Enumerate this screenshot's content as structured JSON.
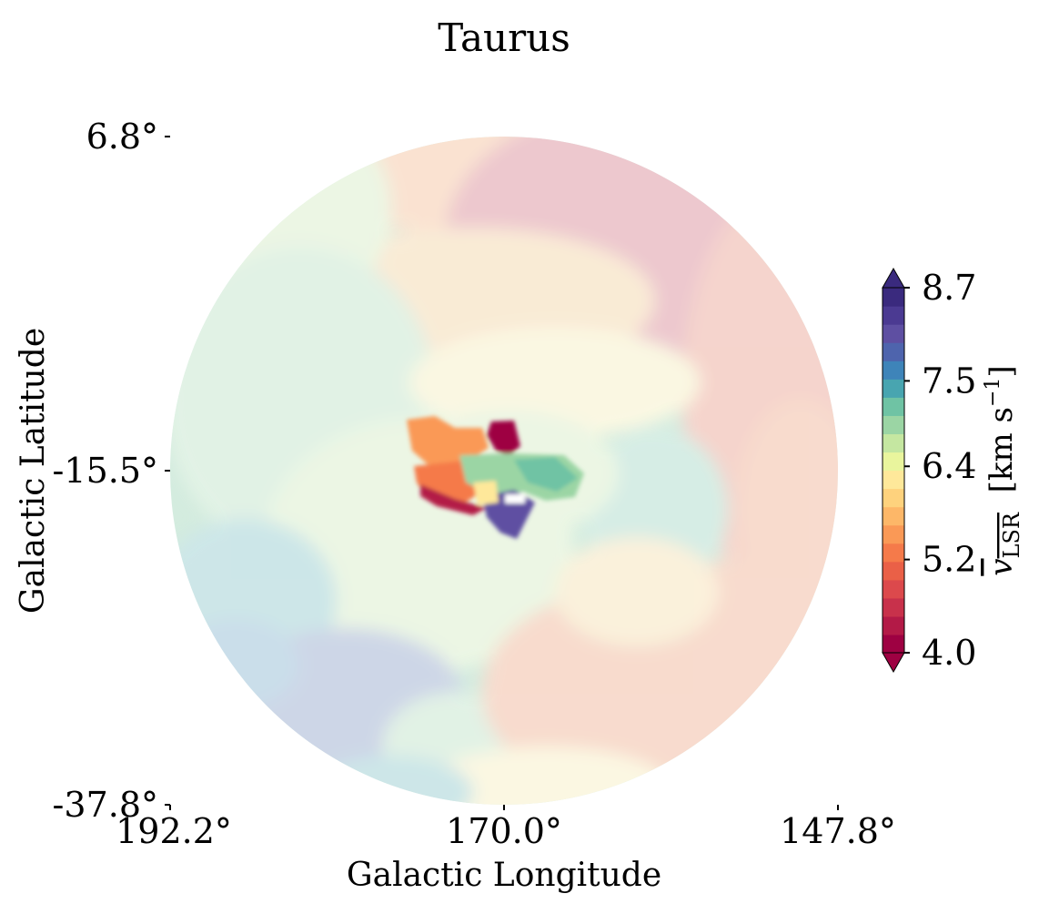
{
  "chart_data": {
    "type": "heatmap",
    "title": "Taurus",
    "xlabel": "Galactic Longitude",
    "ylabel": "Galactic Latitude",
    "x_ticks": [
      "192.2°",
      "170.0°",
      "147.8°"
    ],
    "y_ticks": [
      "6.8°",
      "-15.5°",
      "-37.8°"
    ],
    "xlim": [
      192.2,
      147.8
    ],
    "ylim": [
      -37.8,
      6.8
    ],
    "region_shape": "circular map footprint",
    "colorbar": {
      "label_main": "v",
      "label_sub": "LSR",
      "label_unit_a": "[km s",
      "label_unit_exp": "−1",
      "label_unit_b": "]",
      "range": [
        4.0,
        8.7
      ],
      "ticks": [
        "4.0",
        "5.2",
        "6.4",
        "7.5",
        "8.7"
      ],
      "tick_values": [
        4.0,
        5.2,
        6.4,
        7.5,
        8.7
      ],
      "extend": "both",
      "colormap": [
        "#9e0142",
        "#b31a47",
        "#c8314b",
        "#dc494c",
        "#ea6047",
        "#f57a4a",
        "#fa9956",
        "#fdb768",
        "#fed27d",
        "#fee89a",
        "#e9f59d",
        "#c5e7a1",
        "#9bd5a4",
        "#6fc3a4",
        "#48a5b0",
        "#3e84b9",
        "#4e64ad",
        "#5e4fa2",
        "#4b3a92",
        "#3a2a7e"
      ]
    },
    "background_field": {
      "opacity": "faded",
      "pattern": "reddish (~4.6–5.4 km/s) in upper-right and right edge, yellow/cream band across middle, greenish-cyan (~6.6–7.0 km/s) in center-left, bluish-purple (~7.5–8.2 km/s) patches in lower-left",
      "left_region_value": 6.9,
      "top_right_value": 4.7,
      "lower_left_value": 7.9,
      "bottom_right_value": 5.3
    },
    "highlighted_cloud": {
      "description": "saturated central cloud near (170.5°, -15°)",
      "west_lobe_value": 5.6,
      "north_spot_value": 4.1,
      "east_lobe_value": 6.9,
      "south_spot_value": 8.2,
      "southwest_edge_value": 4.3
    }
  }
}
